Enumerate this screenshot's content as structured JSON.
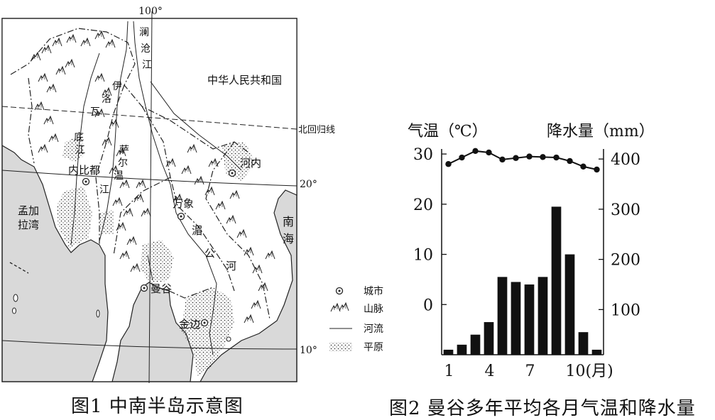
{
  "map": {
    "meridian_100": "100°",
    "lat_20": "20°",
    "lat_10": "10°",
    "tropic_label": "北回归线",
    "china_label": "中华人民共和国",
    "bay_label_1": "孟加",
    "bay_label_2": "拉湾",
    "sea_label_1": "南",
    "sea_label_2": "海",
    "cities": [
      "内比都",
      "万象",
      "河内",
      "曼谷",
      "金边"
    ],
    "river_chars": {
      "lancang": [
        "澜",
        "沧",
        "江"
      ],
      "irrawaddy": [
        "伊",
        "洛",
        "瓦",
        "底",
        "江"
      ],
      "salween": [
        "萨",
        "尔",
        "温",
        "江"
      ],
      "mekong": [
        "湄",
        "公",
        "河"
      ]
    },
    "legend": {
      "city": "城市",
      "mountain": "山脉",
      "river": "河流",
      "plain": "平原"
    },
    "caption": "图1  中南半岛示意图",
    "colors": {
      "land_gray": "#d9d9d9",
      "line": "#222222"
    }
  },
  "chart_caption": "图2    曼谷多年平均各月气温和降水量",
  "chart_data": {
    "type": "bar+line",
    "categories": [
      1,
      2,
      3,
      4,
      5,
      6,
      7,
      8,
      9,
      10,
      11,
      12
    ],
    "x_tick_labels": [
      "1",
      "4",
      "7",
      "10(月)"
    ],
    "left_axis": {
      "label": "气温（℃）",
      "ticks": [
        0,
        10,
        20,
        30
      ],
      "range": [
        -10,
        31
      ]
    },
    "right_axis": {
      "label": "降水量（mm）",
      "ticks": [
        100,
        200,
        300,
        400
      ],
      "range": [
        10,
        420
      ]
    },
    "series": [
      {
        "type": "line",
        "axis": "left",
        "values": [
          28.0,
          29.3,
          30.6,
          30.3,
          28.9,
          29.2,
          29.5,
          29.4,
          29.3,
          28.6,
          27.5,
          26.9
        ]
      },
      {
        "type": "bar",
        "axis": "right",
        "values": [
          20,
          30,
          50,
          75,
          165,
          155,
          150,
          165,
          305,
          210,
          55,
          20
        ]
      }
    ]
  }
}
